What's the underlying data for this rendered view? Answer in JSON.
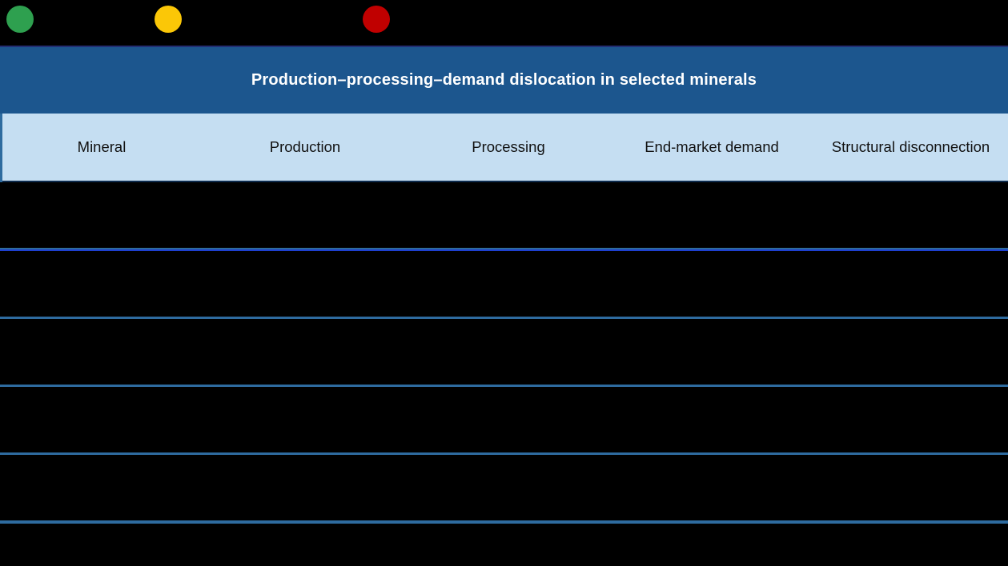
{
  "title": "Production–processing–demand dislocation in selected minerals",
  "legend": {
    "items": [
      {
        "name": "legend-dot-green",
        "color": "green"
      },
      {
        "name": "legend-dot-yellow",
        "color": "yellow"
      },
      {
        "name": "legend-dot-red",
        "color": "red"
      }
    ]
  },
  "chart_data": {
    "type": "table",
    "title": "Production–processing–demand dislocation in selected minerals",
    "columns": [
      "Mineral",
      "Production",
      "Processing",
      "End-market demand",
      "Structural disconnection"
    ],
    "rows": [
      {
        "mineral": "",
        "dots": [
          "green",
          "yellow",
          "red"
        ],
        "structural_disconnection": ""
      },
      {
        "mineral": "",
        "dots": [
          "green",
          "yellow",
          "red"
        ],
        "structural_disconnection": ""
      },
      {
        "mineral": "",
        "dots": [
          "green",
          "yellow",
          "red"
        ],
        "structural_disconnection": ""
      },
      {
        "mineral": "",
        "dots": [
          "green",
          "yellow",
          "red"
        ],
        "structural_disconnection": ""
      },
      {
        "mineral": "",
        "dots": [
          "yellow",
          "red",
          "red"
        ],
        "structural_disconnection": ""
      }
    ],
    "legend_dot_colors": [
      "green",
      "yellow",
      "red"
    ],
    "layout": {
      "legend_position": "top-left",
      "grid": "horizontal-row-separators",
      "dot_columns": [
        "Production",
        "Processing",
        "End-market demand"
      ]
    }
  },
  "colors": {
    "green": "#2EA04F",
    "yellow": "#FBC707",
    "red": "#C00000",
    "title_bar_bg": "#1C568E",
    "header_bg": "#C5DEF2",
    "separator": "#2E6B9F",
    "separator_bright": "#1D3FD0",
    "background": "#000000",
    "title_text": "#FFFFFF",
    "header_text": "#121212"
  }
}
